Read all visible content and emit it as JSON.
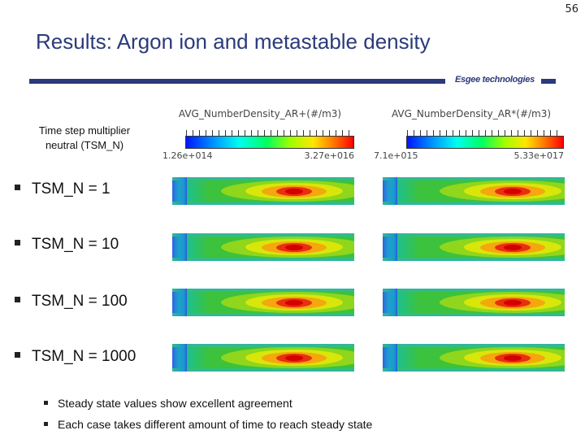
{
  "slide_number": "56",
  "title": "Results: Argon ion and metastable density",
  "brand": "Esgee technologies",
  "tsm_label_line1": "Time step multiplier",
  "tsm_label_line2": "neutral (TSM_N)",
  "colorbars": [
    {
      "title": "AVG_NumberDensity_AR+(#/m3)",
      "min": "1.26e+014",
      "max": "3.27e+016"
    },
    {
      "title": "AVG_NumberDensity_AR*(#/m3)",
      "min": "7.1e+015",
      "max": "5.33e+017"
    }
  ],
  "cases": [
    "TSM_N = 1",
    "TSM_N = 10",
    "TSM_N = 100",
    "TSM_N = 1000"
  ],
  "bullets": [
    "Steady state values show excellent agreement",
    "Each case takes different amount of time to reach steady state"
  ],
  "colors": {
    "title": "#2b3a7a",
    "bar": "#2b3a7a"
  }
}
